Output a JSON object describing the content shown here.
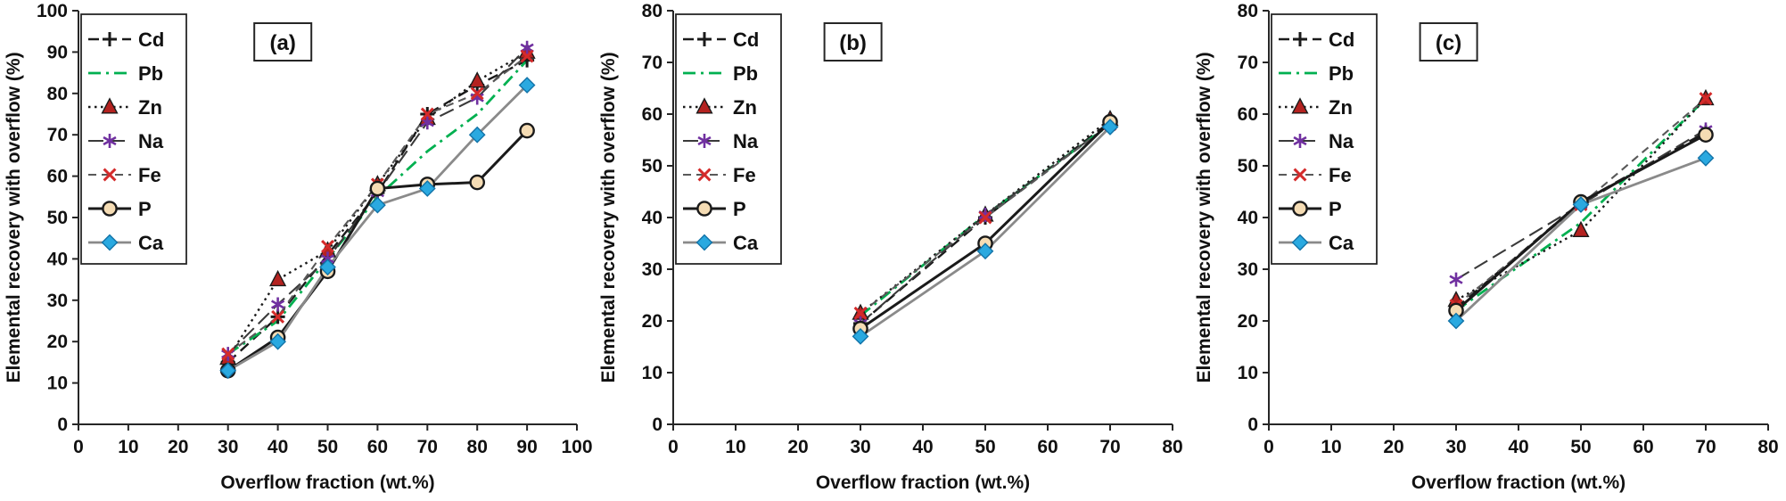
{
  "series_styles": {
    "Cd": {
      "label": "Cd",
      "line_color": "#1a1a1a",
      "dash": "12 7",
      "line_width": 2.4,
      "marker": "plus",
      "marker_color": "#1a1a1a"
    },
    "Pb": {
      "label": "Pb",
      "line_color": "#00b050",
      "dash": "14 6 3 6",
      "line_width": 2.8,
      "marker": "none",
      "marker_color": "#00b050"
    },
    "Zn": {
      "label": "Zn",
      "line_color": "#1a1a1a",
      "dash": "2.5 4.5",
      "line_width": 2.4,
      "marker": "triangle",
      "marker_color": "#b42220"
    },
    "Na": {
      "label": "Na",
      "line_color": "#3a3a3a",
      "dash": "17 7",
      "line_width": 2.1,
      "marker": "asterisk",
      "marker_color": "#7030a0"
    },
    "Fe": {
      "label": "Fe",
      "line_color": "#595959",
      "dash": "9 6",
      "line_width": 2.1,
      "marker": "x",
      "marker_color": "#d42a2a"
    },
    "P": {
      "label": "P",
      "line_color": "#1a1a1a",
      "dash": "",
      "line_width": 3.0,
      "marker": "circle",
      "marker_color": "#f5dcb4"
    },
    "Ca": {
      "label": "Ca",
      "line_color": "#8a8a8a",
      "dash": "",
      "line_width": 2.8,
      "marker": "diamond",
      "marker_color": "#2aa9e0"
    }
  },
  "legend_order": [
    "Cd",
    "Pb",
    "Zn",
    "Na",
    "Fe",
    "P",
    "Ca"
  ],
  "chart_data": [
    {
      "type": "line",
      "panel_label": "(a)",
      "xlabel": "Overflow fraction (wt.%)",
      "ylabel": "Elemental recovery with overflow (%)",
      "xlim": [
        0,
        100
      ],
      "ylim": [
        0,
        100
      ],
      "xticks": [
        0,
        10,
        20,
        30,
        40,
        50,
        60,
        70,
        80,
        90,
        100
      ],
      "yticks": [
        0,
        10,
        20,
        30,
        40,
        50,
        60,
        70,
        80,
        90,
        100
      ],
      "x": [
        30,
        40,
        50,
        60,
        70,
        80,
        90
      ],
      "series": [
        {
          "name": "Cd",
          "values": [
            15,
            26,
            41,
            56,
            75,
            82,
            88
          ]
        },
        {
          "name": "Pb",
          "values": [
            17,
            25,
            40,
            55,
            66,
            75,
            88
          ]
        },
        {
          "name": "Zn",
          "values": [
            16,
            35,
            42,
            58,
            74,
            83,
            90
          ]
        },
        {
          "name": "Na",
          "values": [
            17,
            29,
            40,
            56,
            73,
            79,
            91
          ]
        },
        {
          "name": "Fe",
          "values": [
            17,
            26,
            43,
            58,
            75,
            80,
            89
          ]
        },
        {
          "name": "P",
          "values": [
            13,
            21,
            37,
            57,
            58,
            58.5,
            71
          ]
        },
        {
          "name": "Ca",
          "values": [
            13,
            20,
            38,
            53,
            57,
            70,
            82
          ]
        }
      ]
    },
    {
      "type": "line",
      "panel_label": "(b)",
      "xlabel": "Overflow fraction (wt.%)",
      "ylabel": "Elemental recovery with overflow (%)",
      "xlim": [
        0,
        80
      ],
      "ylim": [
        0,
        80
      ],
      "xticks": [
        0,
        10,
        20,
        30,
        40,
        50,
        60,
        70,
        80
      ],
      "yticks": [
        0,
        10,
        20,
        30,
        40,
        50,
        60,
        70,
        80
      ],
      "x": [
        30,
        50,
        70
      ],
      "series": [
        {
          "name": "Cd",
          "values": [
            19.5,
            40,
            58.5
          ]
        },
        {
          "name": "Pb",
          "values": [
            21,
            40.5,
            58
          ]
        },
        {
          "name": "Zn",
          "values": [
            21.5,
            40.5,
            59
          ]
        },
        {
          "name": "Na",
          "values": [
            19.5,
            40.5,
            58
          ]
        },
        {
          "name": "Fe",
          "values": [
            21.5,
            40,
            58
          ]
        },
        {
          "name": "P",
          "values": [
            18.5,
            35,
            58.5
          ]
        },
        {
          "name": "Ca",
          "values": [
            17,
            33.5,
            57.5
          ]
        }
      ]
    },
    {
      "type": "line",
      "panel_label": "(c)",
      "xlabel": "Overflow fraction (wt.%)",
      "ylabel": "Elemental recovery with overflow (%)",
      "xlim": [
        0,
        80
      ],
      "ylim": [
        0,
        80
      ],
      "xticks": [
        0,
        10,
        20,
        30,
        40,
        50,
        60,
        70,
        80
      ],
      "yticks": [
        0,
        10,
        20,
        30,
        40,
        50,
        60,
        70,
        80
      ],
      "x": [
        30,
        50,
        70
      ],
      "series": [
        {
          "name": "Cd",
          "values": [
            22.5,
            43,
            56.5
          ]
        },
        {
          "name": "Pb",
          "values": [
            22,
            39,
            63
          ]
        },
        {
          "name": "Zn",
          "values": [
            24,
            37.5,
            63
          ]
        },
        {
          "name": "Na",
          "values": [
            28,
            42.5,
            57
          ]
        },
        {
          "name": "Fe",
          "values": [
            23,
            42.5,
            63
          ]
        },
        {
          "name": "P",
          "values": [
            22,
            43,
            56
          ]
        },
        {
          "name": "Ca",
          "values": [
            20,
            42.5,
            51.5
          ]
        }
      ]
    }
  ]
}
